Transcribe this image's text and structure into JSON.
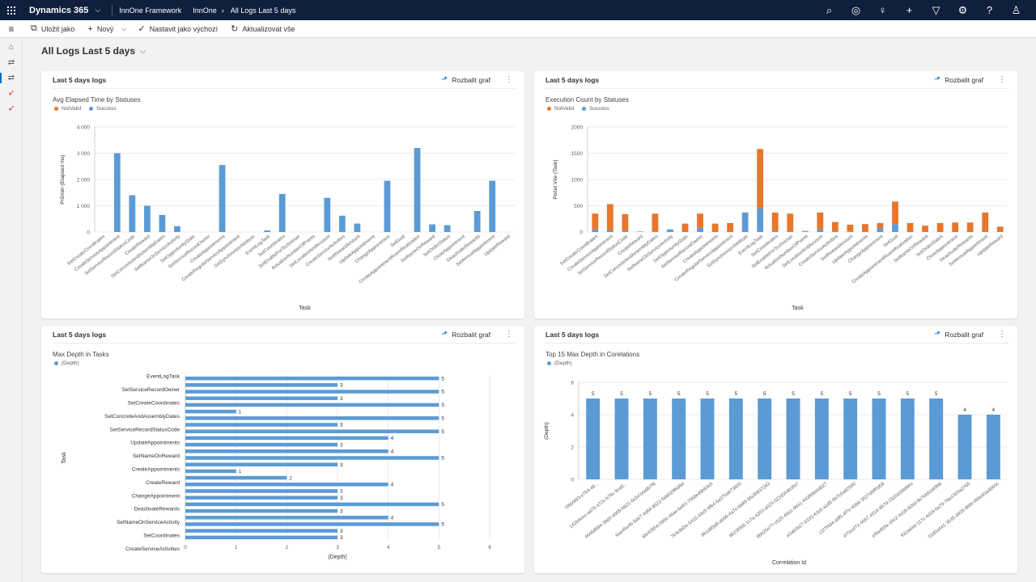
{
  "topbar": {
    "app_name": "Dynamics 365",
    "app_chevron": "⌵",
    "crumb1": "InnOne Framework",
    "crumb2": "InnOne",
    "crumb_arrow": "›",
    "crumb3": "All Logs Last 5 days",
    "icons": [
      "search-icon",
      "assistant-icon",
      "lightbulb-icon",
      "add-icon",
      "filter-icon",
      "settings-icon",
      "help-icon",
      "user-icon"
    ]
  },
  "commands": {
    "save_as": "Uložit jako",
    "new": "Nový",
    "set_default": "Nastavit jako výchozí",
    "refresh_all": "Aktualizovat vše"
  },
  "page": {
    "title": "All Logs Last 5 days"
  },
  "cards": [
    {
      "header": "Last 5 days logs",
      "expand_label": "Rozbalit graf",
      "chart_title": "Avg Elapsed Time by Statuses",
      "legend": [
        "NotValid",
        "Success"
      ]
    },
    {
      "header": "Last 5 days logs",
      "expand_label": "Rozbalit graf",
      "chart_title": "Execution Count by Statuses",
      "legend": [
        "NotValid",
        "Success"
      ]
    },
    {
      "header": "Last 5 days logs",
      "expand_label": "Rozbalit graf",
      "chart_title": "Max Depth in Tasks",
      "legend": [
        "(Depth)"
      ]
    },
    {
      "header": "Last 5 days logs",
      "expand_label": "Rozbalit graf",
      "chart_title": "Top 15 Max Depth in Corelations",
      "legend": [
        "(Depth)"
      ]
    }
  ],
  "colors": {
    "notvalid": "#e8762b",
    "success": "#5b9bd5",
    "topbar": "#0f1f3d"
  },
  "chart_data": [
    {
      "type": "bar",
      "title": "Avg Elapsed Time by Statuses",
      "xlabel": "Task",
      "ylabel": "Průměr (Elapsed ms)",
      "ylim": [
        0,
        4000
      ],
      "yticks": [
        "0",
        "1 000",
        "2 000",
        "3 000",
        "4 000"
      ],
      "categories": [
        "SetCreateCoordinates",
        "CreateServiceAppointment",
        "SetServiceRecordStatusCode",
        "CreateReward",
        "SetConcreteAndAssemblyDates",
        "SetNameOnServiceActivity",
        "SetOpportunityState",
        "SetServiceRecordOwner",
        "CreateAppointments",
        "CreateRegularServiceAppointment",
        "SetSynchronizeAttribute",
        "EventLogTask",
        "SetCoordinates",
        "SetEnableForTechnician",
        "ActualizeNumberOfPoints",
        "SetLocationAndAccount",
        "CreateServiceActivities",
        "SetRewardAmount",
        "UpdateAppointments",
        "ChangeAppointment",
        "SetGuid",
        "CreateAppointmentRoomRealization",
        "SetNameOnReward",
        "SetOrderStatus",
        "CloseAppointment",
        "DeactivateRewards",
        "SetAnnualAppointment",
        "UpdateReward"
      ],
      "series": [
        {
          "name": "NotValid",
          "values": [
            0,
            0,
            0,
            0,
            0,
            0,
            0,
            0,
            0,
            0,
            0,
            0,
            0,
            0,
            0,
            0,
            0,
            0,
            0,
            0,
            0,
            0,
            0,
            0,
            0,
            0,
            0,
            0
          ]
        },
        {
          "name": "Success",
          "values": [
            0,
            3000,
            1400,
            1000,
            650,
            220,
            0,
            0,
            2550,
            0,
            0,
            60,
            1450,
            0,
            0,
            1300,
            620,
            320,
            0,
            1950,
            0,
            3200,
            290,
            260,
            0,
            800,
            1950,
            0
          ]
        }
      ]
    },
    {
      "type": "bar",
      "title": "Execution Count by Statuses",
      "xlabel": "Task",
      "ylabel": "Počet Vše (Task)",
      "ylim": [
        0,
        2000
      ],
      "yticks": [
        "0",
        "500",
        "1000",
        "1500",
        "2000"
      ],
      "stacked": true,
      "categories": [
        "SetCreateCoordinates",
        "CreateServiceAppointment",
        "SetServiceRecordStatusCode",
        "CreateReward",
        "SetConcreteAndAssemblyDates",
        "SetNameOnServiceActivity",
        "SetOpportunityState",
        "SetServiceRecordOwner",
        "CreateAppointments",
        "CreateRegularServiceAppointment",
        "SetSynchronizeAttribute",
        "EventLogTask",
        "SetCoordinates",
        "SetEnableForTechnician",
        "ActualizeNumberOfPoints",
        "SetLocationAndAccount",
        "CreateServiceActivities",
        "SetRewardAmount",
        "UpdateAppointments",
        "ChangeAppointment",
        "SetGuid",
        "CreateAppointmentRoomRealization",
        "SetNameOnReward",
        "SetOrderStatus",
        "CloseAppointment",
        "DeactivateRewards",
        "SetAnnualAppointment",
        "UpdateReward"
      ],
      "series": [
        {
          "name": "Success",
          "values": [
            50,
            30,
            20,
            10,
            10,
            50,
            0,
            80,
            0,
            0,
            370,
            450,
            20,
            10,
            10,
            50,
            10,
            10,
            0,
            70,
            150,
            0,
            0,
            0,
            0,
            0,
            0,
            0
          ]
        },
        {
          "name": "NotValid",
          "values": [
            300,
            500,
            320,
            0,
            340,
            0,
            160,
            270,
            160,
            170,
            0,
            1130,
            350,
            340,
            10,
            320,
            180,
            130,
            150,
            100,
            430,
            170,
            120,
            170,
            180,
            180,
            370,
            100
          ]
        }
      ]
    },
    {
      "type": "bar",
      "orientation": "horizontal",
      "title": "Max Depth in Tasks",
      "xlabel": "(Depth)",
      "ylabel": "Task",
      "xlim": [
        0,
        6
      ],
      "xticks": [
        "0",
        "1",
        "2",
        "3",
        "4",
        "5",
        "6"
      ],
      "categories": [
        "EventLogTask",
        "",
        "SetServiceRecordOwner",
        "",
        "SetCreateCoordinates",
        "",
        "SetConcreteAndAssemblyDates",
        "",
        "SetServiceRecordStatusCode",
        "",
        "UpdateAppointments",
        "",
        "SetNameOnReward",
        "",
        "CreateAppointments",
        "",
        "CreateReward",
        "",
        "ChangeAppointment",
        "",
        "DeactivateRewards",
        "",
        "SetNameOnServiceActivity",
        "",
        "SetCoordinates",
        "",
        "CreateServiceActivities"
      ],
      "values": [
        5,
        3,
        5,
        3,
        5,
        1,
        5,
        3,
        5,
        4,
        3,
        4,
        5,
        3,
        1,
        2,
        4,
        3,
        3,
        5,
        3,
        4,
        5,
        3,
        3
      ],
      "labels": [
        "5",
        "3",
        "5",
        "3",
        "5",
        "1",
        "5",
        "3",
        "5",
        "4",
        "3",
        "4",
        "5",
        "3",
        "1",
        "2",
        "4",
        "3",
        "3",
        "5",
        "3",
        "4",
        "5",
        "3",
        "3"
      ],
      "series": [
        {
          "name": "(Depth)",
          "values": [
            5,
            3,
            5,
            3,
            5,
            1,
            5,
            3,
            5,
            4,
            3,
            4,
            5,
            3,
            1,
            2,
            4,
            3,
            3,
            5,
            3,
            4,
            5,
            3,
            3
          ]
        }
      ]
    },
    {
      "type": "bar",
      "title": "Top 15 Max Depth in Corelations",
      "xlabel": "Correlation Id",
      "ylabel": "(Depth)",
      "ylim": [
        0,
        6
      ],
      "yticks": [
        "0",
        "2",
        "4",
        "6"
      ],
      "categories": [
        "0f6bf493-e7b4-46...",
        "142b4eec-a875-472c-b76c-9ca5...",
        "46468594-39d3-4905-b821-6e5434a8b7f6",
        "6ae45e4b-5de7-4d84-8522-568029f6d9d",
        "6fe40854-0994-46ae-be63-7068ed9b93c5",
        "763c8d3e-5415-44e5-9f64-6a370ab73800",
        "891d85d8-ab96-4a7e-bb89-9fa36837263",
        "9623f0b5-1c7a-4203-a023-022d344b3fa7",
        "9b625e77-c525-49a1-9841-493f69d4d527",
        "a3a60b27-6333-43c5-a1d5-5b7c6a82590",
        "c1f7f494-a9f5-4f7e-93b8-3027d9ff0d08",
        "d70eef72-4657-4518-857d-1520d39fd94c",
        "ef9a4b5a-a5e2-4c09-926d-9e7eb52d0fb6",
        "ff32a64d-117c-4d18-ba79-76e4303a2765",
        "02d0a441-3535-4939-9fd9-065e83a4b60c"
      ],
      "values": [
        5,
        5,
        5,
        5,
        5,
        5,
        5,
        5,
        5,
        5,
        5,
        5,
        5,
        4,
        4
      ],
      "labels": [
        "5",
        "5",
        "5",
        "5",
        "5",
        "5",
        "5",
        "5",
        "5",
        "5",
        "5",
        "5",
        "5",
        "4",
        "4"
      ],
      "series": [
        {
          "name": "(Depth)",
          "values": [
            5,
            5,
            5,
            5,
            5,
            5,
            5,
            5,
            5,
            5,
            5,
            5,
            5,
            4,
            4
          ]
        }
      ]
    }
  ]
}
